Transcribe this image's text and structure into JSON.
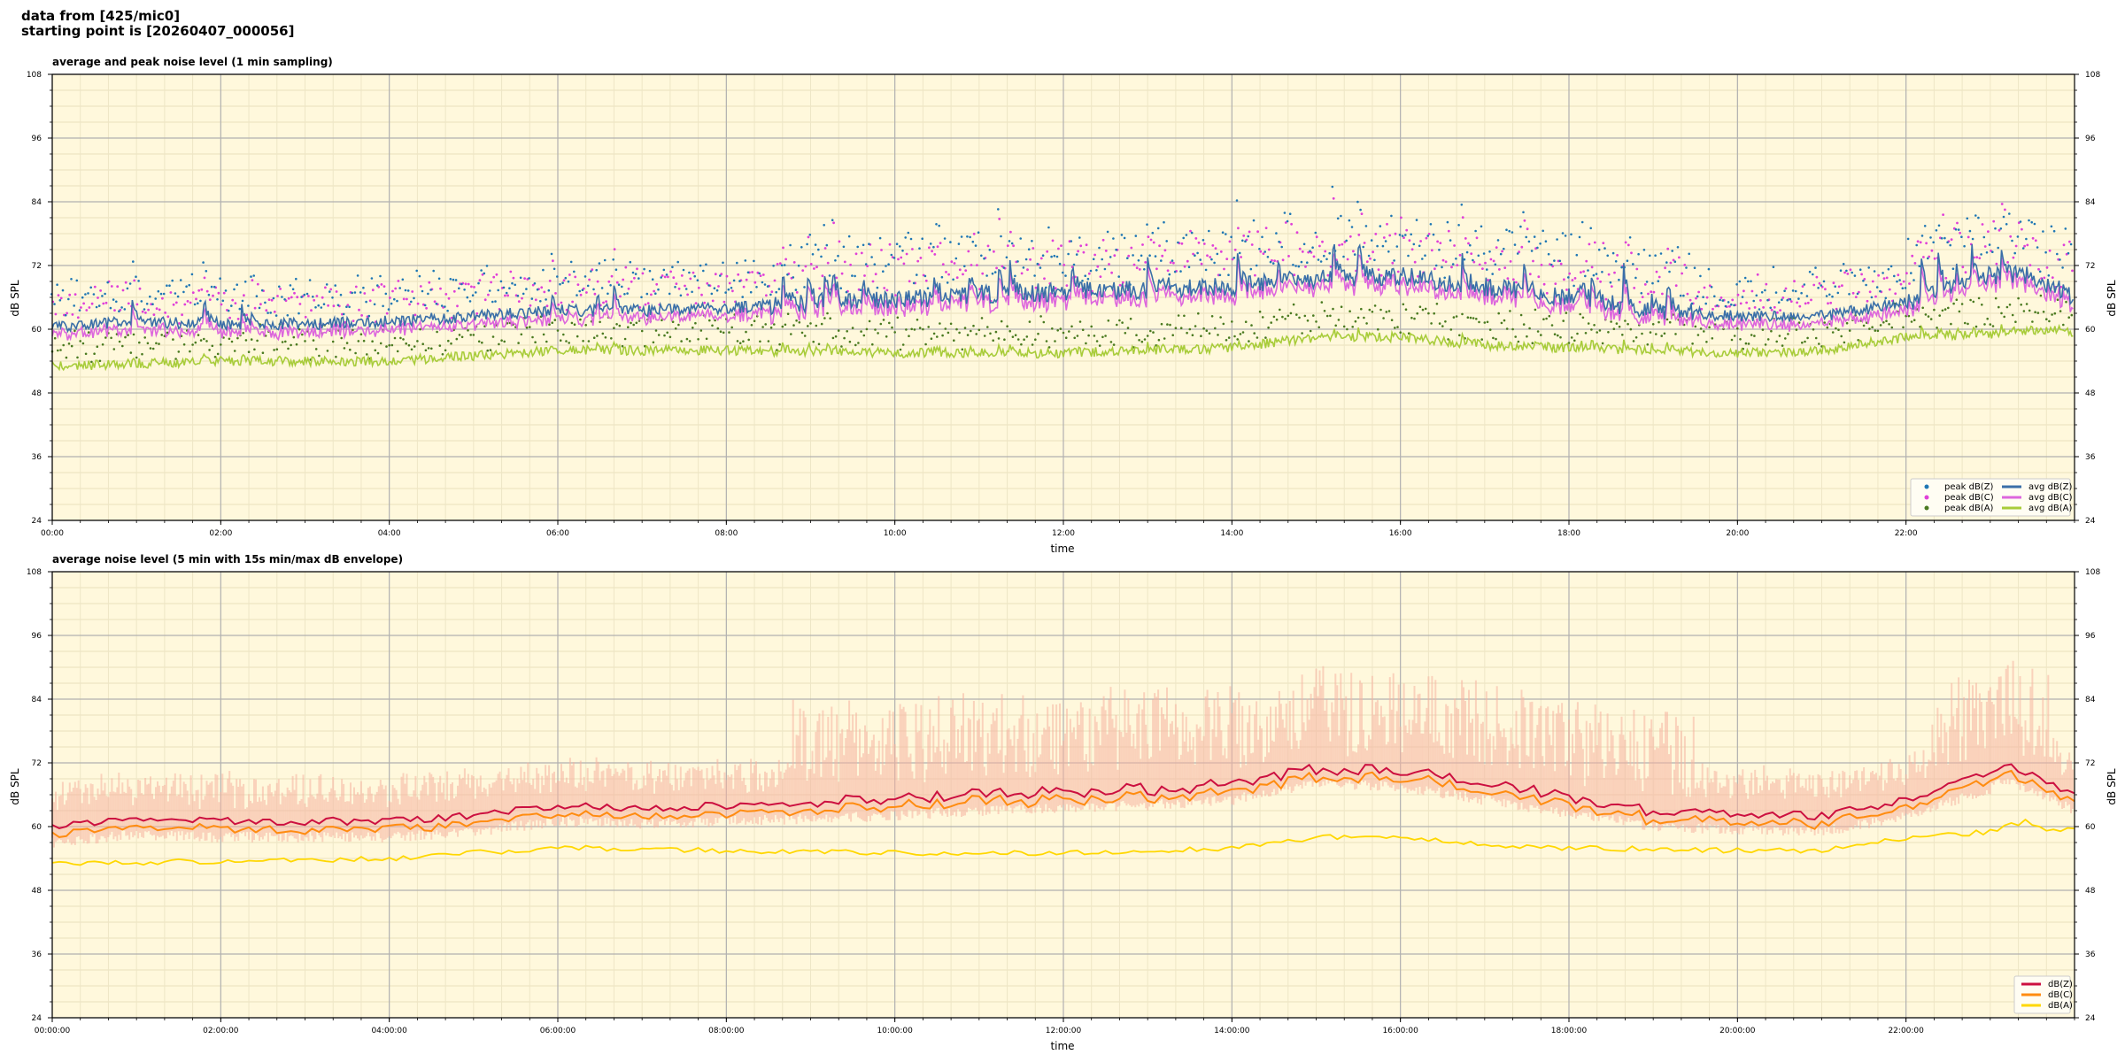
{
  "header": {
    "source_line": "data from [425/mic0]",
    "start_line": "starting point is [20260407_000056]"
  },
  "colors": {
    "plot_bg": "#fff8dc",
    "peak_z": "#1f77b4",
    "peak_c": "#e040d8",
    "peak_a": "#4a7a20",
    "avg_z": "#3a6fa8",
    "avg_c": "#dd66dd",
    "avg_a": "#a8cc3a",
    "env": "#f5b3a0",
    "db_z": "#cc1040",
    "db_c": "#ff8c10",
    "db_a": "#ffd700"
  },
  "chart_data": [
    {
      "type": "scatter+line",
      "title": "average and peak noise level (1 min sampling)",
      "xlabel": "time",
      "ylabel": "dB SPL",
      "ylabel_right": "dB SPL",
      "xlim": [
        0,
        24
      ],
      "ylim": [
        24,
        108
      ],
      "y_ticks": [
        "24",
        "36",
        "48",
        "60",
        "72",
        "84",
        "96",
        "108"
      ],
      "x_ticks": [
        "00:00",
        "02:00",
        "04:00",
        "06:00",
        "08:00",
        "10:00",
        "12:00",
        "14:00",
        "16:00",
        "18:00",
        "20:00",
        "22:00"
      ],
      "grid": true,
      "legend_position": "lower-right",
      "legend": [
        {
          "label": "peak dB(Z)",
          "kind": "dot",
          "color_key": "peak_z"
        },
        {
          "label": "avg dB(Z)",
          "kind": "line",
          "color_key": "avg_z"
        },
        {
          "label": "peak dB(C)",
          "kind": "dot",
          "color_key": "peak_c"
        },
        {
          "label": "avg dB(C)",
          "kind": "line",
          "color_key": "avg_c"
        },
        {
          "label": "peak dB(A)",
          "kind": "dot",
          "color_key": "peak_a"
        },
        {
          "label": "avg dB(A)",
          "kind": "line",
          "color_key": "avg_a"
        }
      ],
      "avg_z_profile": [
        [
          0,
          60.5
        ],
        [
          1,
          61.5
        ],
        [
          2,
          61
        ],
        [
          3,
          61
        ],
        [
          4,
          61.5
        ],
        [
          5,
          62.5
        ],
        [
          6,
          63.5
        ],
        [
          7,
          63.5
        ],
        [
          8,
          64
        ],
        [
          9,
          65
        ],
        [
          10,
          65.5
        ],
        [
          11,
          66.5
        ],
        [
          12,
          67
        ],
        [
          13,
          67.5
        ],
        [
          14,
          68
        ],
        [
          15,
          69.5
        ],
        [
          16,
          70
        ],
        [
          17,
          68
        ],
        [
          18,
          66
        ],
        [
          19,
          63.5
        ],
        [
          20,
          62.5
        ],
        [
          21,
          62.5
        ],
        [
          22,
          65
        ],
        [
          23,
          70
        ],
        [
          23.5,
          70
        ],
        [
          24,
          66
        ]
      ],
      "avg_c_offset": -1.5,
      "avg_a_profile": [
        [
          0,
          53
        ],
        [
          2,
          54
        ],
        [
          4,
          54
        ],
        [
          6,
          56
        ],
        [
          8,
          56
        ],
        [
          10,
          55.5
        ],
        [
          12,
          55.5
        ],
        [
          14,
          56.5
        ],
        [
          15,
          58.5
        ],
        [
          16,
          58.5
        ],
        [
          17,
          57
        ],
        [
          18,
          56.5
        ],
        [
          20,
          55.5
        ],
        [
          21,
          56
        ],
        [
          22,
          58.5
        ],
        [
          23,
          59
        ],
        [
          23.6,
          60
        ],
        [
          24,
          59.5
        ]
      ],
      "peak_spread_db": 9,
      "peak_a_offset_db": 3.5
    },
    {
      "type": "line+envelope",
      "title": "average noise level (5 min with 15s min/max dB envelope)",
      "xlabel": "time",
      "ylabel": "dB SPL",
      "ylabel_right": "dB SPL",
      "xlim": [
        0,
        24
      ],
      "ylim": [
        24,
        108
      ],
      "y_ticks": [
        "24",
        "36",
        "48",
        "60",
        "72",
        "84",
        "96",
        "108"
      ],
      "x_ticks": [
        "00:00:00",
        "02:00:00",
        "04:00:00",
        "06:00:00",
        "08:00:00",
        "10:00:00",
        "12:00:00",
        "14:00:00",
        "16:00:00",
        "18:00:00",
        "20:00:00",
        "22:00:00"
      ],
      "grid": true,
      "legend_position": "lower-right",
      "legend": [
        {
          "label": "dB(Z)",
          "kind": "line",
          "color_key": "db_z"
        },
        {
          "label": "dB(C)",
          "kind": "line",
          "color_key": "db_c"
        },
        {
          "label": "dB(A)",
          "kind": "line",
          "color_key": "db_a"
        }
      ],
      "db_z_profile": [
        [
          0,
          60
        ],
        [
          1,
          61.5
        ],
        [
          2,
          61
        ],
        [
          3,
          61
        ],
        [
          4,
          61
        ],
        [
          5,
          62
        ],
        [
          6,
          64
        ],
        [
          7,
          63.5
        ],
        [
          8,
          64
        ],
        [
          9,
          64.5
        ],
        [
          10,
          65
        ],
        [
          11,
          66
        ],
        [
          12,
          66.5
        ],
        [
          13,
          67
        ],
        [
          14,
          68
        ],
        [
          15,
          71
        ],
        [
          16,
          70.5
        ],
        [
          17,
          68
        ],
        [
          18,
          65.5
        ],
        [
          19,
          63
        ],
        [
          20,
          62.5
        ],
        [
          21,
          62
        ],
        [
          22,
          65
        ],
        [
          23,
          70
        ],
        [
          23.2,
          72
        ],
        [
          23.6,
          69
        ],
        [
          24,
          66
        ]
      ],
      "db_c_offset": -1.5,
      "db_a_profile": [
        [
          0,
          53
        ],
        [
          2,
          53.5
        ],
        [
          4,
          54
        ],
        [
          6,
          56
        ],
        [
          8,
          55.5
        ],
        [
          10,
          55
        ],
        [
          12,
          55
        ],
        [
          14,
          56
        ],
        [
          15,
          58
        ],
        [
          16,
          58
        ],
        [
          17,
          56.5
        ],
        [
          18,
          56
        ],
        [
          20,
          55.5
        ],
        [
          21,
          55.5
        ],
        [
          22,
          58
        ],
        [
          23,
          59
        ],
        [
          23.4,
          61
        ],
        [
          23.8,
          59
        ],
        [
          24,
          59.5
        ]
      ],
      "envelope_min_offset_db": -2,
      "envelope_max_offset_db": 16
    }
  ]
}
